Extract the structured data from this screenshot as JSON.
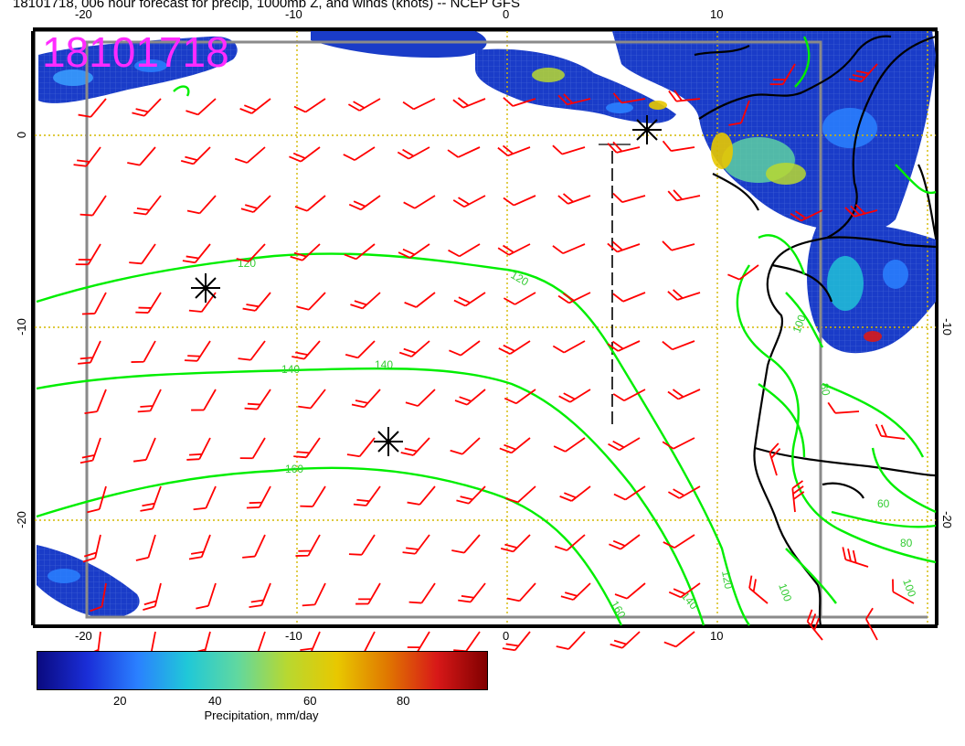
{
  "title": "18101718, 006 hour forecast for precip, 1000mb Z, and winds (knots) -- NCEP GFS",
  "stamp": "18101718",
  "x_ticks": [
    "-20",
    "-10",
    "0",
    "10"
  ],
  "y_ticks": [
    "0",
    "-10",
    "-20"
  ],
  "contour_labels": [
    "120",
    "120",
    "140",
    "140",
    "160",
    "160",
    "140",
    "120",
    "100",
    "80",
    "80",
    "60",
    "100",
    "100"
  ],
  "colorbar": {
    "ticks": [
      "20",
      "40",
      "60",
      "80"
    ],
    "label": "Precipitation, mm/day",
    "colors": [
      "#0a0a80",
      "#1a2ed8",
      "#2a80ff",
      "#20c8d8",
      "#60d8a0",
      "#b8d830",
      "#e8c800",
      "#e07800",
      "#d81818",
      "#800000"
    ]
  },
  "colors": {
    "barb": "#ff0000",
    "contour": "#00ff00",
    "contour_label": "#33cc33",
    "grid": "#d4b800",
    "border": "#000000",
    "frame": "#8a8a8a",
    "stamp": "#ff2bff"
  },
  "map_elements": {
    "contour_lines": "1000mb geopotential height",
    "wind_barbs": "winds (knots)",
    "markers": "asterisk markers"
  }
}
